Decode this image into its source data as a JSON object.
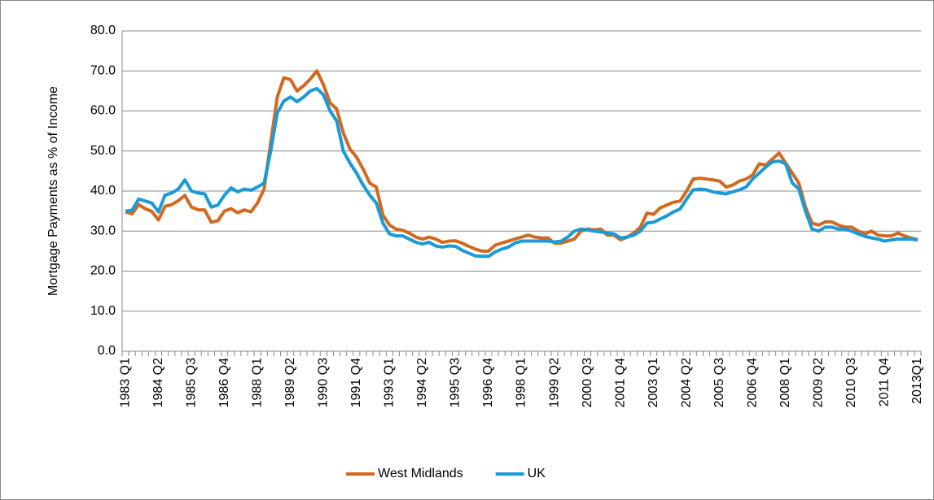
{
  "chart_data": {
    "type": "line",
    "y_label": "Mortgage Payments as % of Income",
    "categories": [
      "1983 Q1",
      null,
      null,
      null,
      null,
      "1984 Q2",
      null,
      null,
      null,
      null,
      "1985 Q3",
      null,
      null,
      null,
      null,
      "1986 Q4",
      null,
      null,
      null,
      null,
      "1988 Q1",
      null,
      null,
      null,
      null,
      "1989 Q2",
      null,
      null,
      null,
      null,
      "1990 Q3",
      null,
      null,
      null,
      null,
      "1991 Q4",
      null,
      null,
      null,
      null,
      "1993 Q1",
      null,
      null,
      null,
      null,
      "1994 Q2",
      null,
      null,
      null,
      null,
      "1995 Q3",
      null,
      null,
      null,
      null,
      "1996 Q4",
      null,
      null,
      null,
      null,
      "1998 Q1",
      null,
      null,
      null,
      null,
      "1999 Q2",
      null,
      null,
      null,
      null,
      "2000 Q3",
      null,
      null,
      null,
      null,
      "2001 Q4",
      null,
      null,
      null,
      null,
      "2003 Q1",
      null,
      null,
      null,
      null,
      "2004 Q2",
      null,
      null,
      null,
      null,
      "2005 Q3",
      null,
      null,
      null,
      null,
      "2006 Q4",
      null,
      null,
      null,
      null,
      "2008 Q1",
      null,
      null,
      null,
      null,
      "2009 Q2",
      null,
      null,
      null,
      null,
      "2010 Q3",
      null,
      null,
      null,
      null,
      "2011 Q4",
      null,
      null,
      null,
      null,
      "2013Q1"
    ],
    "series": [
      {
        "name": "West Midlands",
        "color": "#d2691e",
        "values": [
          34.8,
          34.3,
          36.6,
          35.6,
          34.9,
          32.8,
          36.2,
          36.6,
          37.6,
          38.9,
          36.0,
          35.3,
          35.3,
          32.2,
          32.6,
          35.0,
          35.6,
          34.6,
          35.3,
          34.8,
          37.0,
          40.5,
          52.0,
          63.5,
          68.3,
          67.8,
          65.0,
          66.3,
          68.0,
          70.0,
          66.5,
          62.0,
          60.5,
          54.5,
          50.5,
          48.5,
          45.5,
          42.0,
          41.0,
          34.0,
          31.5,
          30.5,
          30.2,
          29.5,
          28.5,
          28.0,
          28.5,
          28.0,
          27.2,
          27.5,
          27.6,
          27.0,
          26.2,
          25.5,
          25.0,
          25.0,
          26.5,
          27.0,
          27.5,
          28.0,
          28.5,
          29.0,
          28.5,
          28.3,
          28.3,
          27.0,
          27.0,
          27.5,
          28.0,
          30.0,
          30.5,
          30.3,
          30.5,
          29.0,
          29.0,
          27.8,
          28.5,
          29.5,
          31.0,
          34.5,
          34.2,
          35.8,
          36.5,
          37.2,
          37.5,
          40.0,
          43.0,
          43.2,
          43.0,
          42.8,
          42.5,
          41.0,
          41.5,
          42.5,
          43.0,
          44.0,
          46.8,
          46.5,
          48.0,
          49.5,
          47.0,
          44.5,
          42.0,
          36.0,
          32.0,
          31.5,
          32.3,
          32.3,
          31.5,
          31.0,
          31.0,
          30.0,
          29.3,
          30.0,
          29.0,
          28.8,
          28.8,
          29.5,
          28.8,
          28.3,
          27.8
        ]
      },
      {
        "name": "UK",
        "color": "#1a9ad6",
        "values": [
          35.0,
          35.2,
          38.0,
          37.5,
          37.0,
          34.8,
          39.0,
          39.5,
          40.5,
          42.8,
          40.0,
          39.5,
          39.3,
          36.0,
          36.5,
          39.0,
          40.8,
          39.8,
          40.5,
          40.2,
          41.0,
          42.0,
          50.0,
          59.5,
          62.5,
          63.5,
          62.3,
          63.5,
          65.0,
          65.6,
          64.0,
          60.0,
          57.5,
          50.0,
          47.0,
          44.5,
          41.5,
          39.0,
          37.0,
          32.0,
          29.3,
          28.8,
          28.8,
          28.0,
          27.2,
          26.8,
          27.2,
          26.3,
          26.0,
          26.3,
          26.2,
          25.2,
          24.5,
          23.8,
          23.7,
          23.7,
          24.8,
          25.5,
          26.0,
          27.0,
          27.5,
          27.5,
          27.5,
          27.5,
          27.5,
          27.3,
          27.5,
          28.5,
          30.0,
          30.5,
          30.3,
          30.0,
          29.8,
          29.5,
          29.3,
          28.3,
          28.5,
          29.0,
          30.0,
          32.0,
          32.2,
          33.0,
          33.8,
          34.8,
          35.5,
          38.0,
          40.3,
          40.5,
          40.3,
          39.8,
          39.5,
          39.3,
          39.8,
          40.3,
          41.0,
          43.0,
          44.5,
          46.0,
          47.3,
          47.5,
          46.8,
          42.0,
          40.5,
          35.0,
          30.5,
          30.0,
          31.0,
          31.0,
          30.5,
          30.5,
          30.0,
          29.3,
          28.7,
          28.3,
          28.0,
          27.5,
          27.8,
          28.0,
          28.0,
          28.0,
          27.8
        ]
      }
    ],
    "ylim": [
      0,
      80
    ],
    "yticks": [
      {
        "value": 0,
        "label": "0.0"
      },
      {
        "value": 10,
        "label": "10.0"
      },
      {
        "value": 20,
        "label": "20.0"
      },
      {
        "value": 30,
        "label": "30.0"
      },
      {
        "value": 40,
        "label": "40.0"
      },
      {
        "value": 50,
        "label": "50.0"
      },
      {
        "value": 60,
        "label": "60.0"
      },
      {
        "value": 70,
        "label": "70.0"
      },
      {
        "value": 80,
        "label": "80.0"
      }
    ],
    "grid": true,
    "legend": "bottom"
  }
}
